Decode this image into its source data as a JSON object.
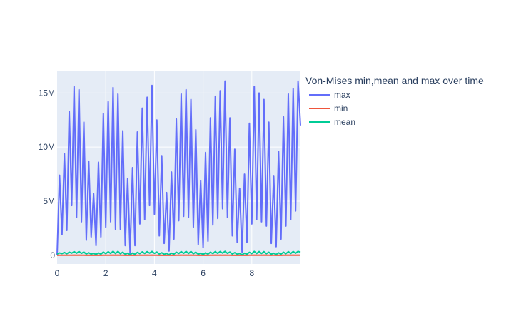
{
  "chart_data": {
    "type": "line",
    "title": "",
    "xlabel": "",
    "ylabel": "",
    "legend_title": "Von-Mises min,mean and max over time",
    "legend_position": "right",
    "grid": true,
    "xlim": [
      0,
      10
    ],
    "ylim": [
      -800000,
      17000000
    ],
    "x_ticks": [
      0,
      2,
      4,
      6,
      8
    ],
    "x_tick_labels": [
      "0",
      "2",
      "4",
      "6",
      "8"
    ],
    "y_ticks": [
      0,
      5000000,
      10000000,
      15000000
    ],
    "y_tick_labels": [
      "0",
      "5M",
      "10M",
      "15M"
    ],
    "x": [
      0,
      0.1,
      0.2,
      0.3,
      0.4,
      0.5,
      0.6,
      0.7,
      0.8,
      0.9,
      1.0,
      1.1,
      1.2,
      1.3,
      1.4,
      1.5,
      1.6,
      1.7,
      1.8,
      1.9,
      2.0,
      2.1,
      2.2,
      2.3,
      2.4,
      2.5,
      2.6,
      2.7,
      2.8,
      2.9,
      3.0,
      3.1,
      3.2,
      3.3,
      3.4,
      3.5,
      3.6,
      3.7,
      3.8,
      3.9,
      4.0,
      4.1,
      4.2,
      4.3,
      4.4,
      4.5,
      4.6,
      4.7,
      4.8,
      4.9,
      5.0,
      5.1,
      5.2,
      5.3,
      5.4,
      5.5,
      5.6,
      5.7,
      5.8,
      5.9,
      6.0,
      6.1,
      6.2,
      6.3,
      6.4,
      6.5,
      6.6,
      6.7,
      6.8,
      6.9,
      7.0,
      7.1,
      7.2,
      7.3,
      7.4,
      7.5,
      7.6,
      7.7,
      7.8,
      7.9,
      8.0,
      8.1,
      8.2,
      8.3,
      8.4,
      8.5,
      8.6,
      8.7,
      8.8,
      8.9,
      9.0,
      9.1,
      9.2,
      9.3,
      9.4,
      9.5,
      9.6,
      9.7,
      9.8,
      9.9,
      10.0
    ],
    "series": [
      {
        "name": "max",
        "color": "#636efa",
        "values": [
          0,
          7400000,
          1900000,
          9400000,
          2300000,
          13300000,
          4600000,
          15600000,
          3500000,
          15300000,
          3100000,
          12300000,
          1400000,
          8700000,
          1700000,
          5700000,
          900000,
          8600000,
          1700000,
          13100000,
          2600000,
          14200000,
          3100000,
          15500000,
          2400000,
          14900000,
          2400000,
          11500000,
          900000,
          7100000,
          200000,
          8100000,
          900000,
          11400000,
          2900000,
          13600000,
          3300000,
          14600000,
          4600000,
          15700000,
          3800000,
          12500000,
          1800000,
          9200000,
          1100000,
          5800000,
          400000,
          7700000,
          1500000,
          12600000,
          3200000,
          14900000,
          3600000,
          15300000,
          3500000,
          14400000,
          2600000,
          11600000,
          1000000,
          6900000,
          700000,
          9500000,
          1300000,
          12700000,
          2800000,
          14700000,
          3400000,
          15200000,
          4300000,
          16100000,
          3500000,
          12700000,
          1800000,
          9800000,
          1200000,
          6200000,
          300000,
          7500000,
          1200000,
          12200000,
          2900000,
          15600000,
          3300000,
          15000000,
          3100000,
          14400000,
          2700000,
          12300000,
          1100000,
          7300000,
          800000,
          9600000,
          1500000,
          12800000,
          2700000,
          14900000,
          3300000,
          15400000,
          4100000,
          16100000,
          12000000
        ]
      },
      {
        "name": "min",
        "color": "#ef553b",
        "values": [
          0,
          8000,
          4000,
          9000,
          5000,
          11000,
          6000,
          12000,
          5000,
          12000,
          5000,
          10000,
          3000,
          8000,
          3000,
          6000,
          2000,
          8000,
          3000,
          11000,
          4000,
          11000,
          5000,
          12000,
          4000,
          12000,
          4000,
          10000,
          2000,
          7000,
          1000,
          8000,
          2000,
          10000,
          5000,
          11000,
          5000,
          12000,
          6000,
          12000,
          5000,
          10000,
          3000,
          8000,
          2000,
          6000,
          1000,
          7000,
          3000,
          11000,
          5000,
          12000,
          5000,
          12000,
          5000,
          12000,
          4000,
          10000,
          2000,
          7000,
          2000,
          8000,
          3000,
          11000,
          4000,
          12000,
          5000,
          12000,
          6000,
          13000,
          5000,
          10000,
          3000,
          9000,
          2000,
          6000,
          1000,
          7000,
          2000,
          10000,
          4000,
          12000,
          5000,
          12000,
          5000,
          12000,
          4000,
          10000,
          2000,
          7000,
          2000,
          8000,
          3000,
          11000,
          4000,
          12000,
          5000,
          12000,
          6000,
          13000,
          10000
        ]
      },
      {
        "name": "mean",
        "color": "#00cc96",
        "values": [
          120000,
          220000,
          160000,
          260000,
          150000,
          290000,
          200000,
          340000,
          190000,
          350000,
          180000,
          300000,
          120000,
          240000,
          110000,
          190000,
          80000,
          220000,
          110000,
          300000,
          150000,
          330000,
          170000,
          370000,
          160000,
          360000,
          150000,
          290000,
          100000,
          200000,
          60000,
          210000,
          90000,
          270000,
          160000,
          320000,
          170000,
          340000,
          200000,
          360000,
          180000,
          300000,
          120000,
          240000,
          90000,
          180000,
          60000,
          200000,
          110000,
          290000,
          170000,
          340000,
          180000,
          360000,
          170000,
          350000,
          150000,
          290000,
          100000,
          200000,
          80000,
          230000,
          110000,
          290000,
          160000,
          340000,
          180000,
          350000,
          200000,
          370000,
          180000,
          300000,
          120000,
          250000,
          100000,
          180000,
          50000,
          200000,
          100000,
          280000,
          160000,
          360000,
          170000,
          350000,
          170000,
          340000,
          150000,
          290000,
          100000,
          200000,
          80000,
          230000,
          110000,
          290000,
          150000,
          340000,
          170000,
          350000,
          190000,
          370000,
          280000
        ]
      }
    ]
  }
}
